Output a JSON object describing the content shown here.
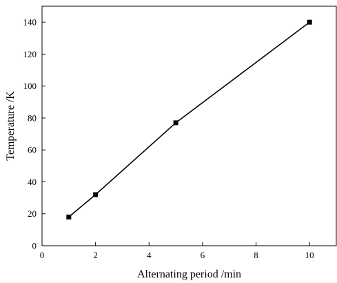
{
  "chart_data": {
    "type": "line",
    "title": "",
    "xlabel": "Alternating period /min",
    "ylabel": "Temperature /K",
    "xlim": [
      0,
      11
    ],
    "ylim": [
      0,
      150
    ],
    "xticks": [
      0,
      2,
      4,
      6,
      8,
      10
    ],
    "yticks": [
      0,
      20,
      40,
      60,
      80,
      100,
      120,
      140
    ],
    "grid": false,
    "legend": "none",
    "marker": "square",
    "colors": {
      "series": "#000000",
      "axes": "#000000",
      "background": "#ffffff"
    },
    "series": [
      {
        "x": [
          1,
          2,
          5,
          10
        ],
        "y": [
          18,
          32,
          77,
          140
        ]
      }
    ]
  }
}
